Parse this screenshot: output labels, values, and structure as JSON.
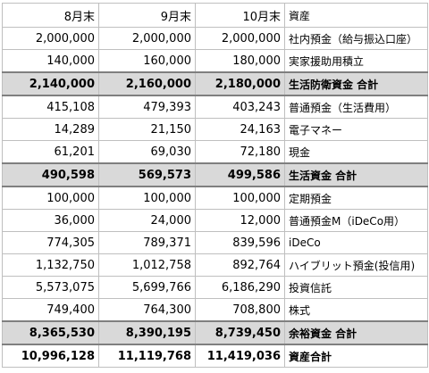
{
  "header": {
    "col1": "8月末",
    "col2": "9月末",
    "col3": "10月末",
    "col4": "資産"
  },
  "rows": [
    {
      "type": "item",
      "aug": "2,000,000",
      "sep": "2,000,000",
      "oct": "2,000,000",
      "label": "社内預金（給与振込口座）"
    },
    {
      "type": "item",
      "aug": "140,000",
      "sep": "160,000",
      "oct": "180,000",
      "label": "実家援助用積立"
    },
    {
      "type": "total",
      "aug": "2,140,000",
      "sep": "2,160,000",
      "oct": "2,180,000",
      "label": "生活防衛資金 合計"
    },
    {
      "type": "item",
      "aug": "415,108",
      "sep": "479,393",
      "oct": "403,243",
      "label": "普通預金（生活費用）"
    },
    {
      "type": "item",
      "aug": "14,289",
      "sep": "21,150",
      "oct": "24,163",
      "label": "電子マネー"
    },
    {
      "type": "item",
      "aug": "61,201",
      "sep": "69,030",
      "oct": "72,180",
      "label": "現金"
    },
    {
      "type": "total",
      "aug": "490,598",
      "sep": "569,573",
      "oct": "499,586",
      "label": "生活資金 合計"
    },
    {
      "type": "item",
      "aug": "100,000",
      "sep": "100,000",
      "oct": "100,000",
      "label": "定期預金"
    },
    {
      "type": "item",
      "aug": "36,000",
      "sep": "24,000",
      "oct": "12,000",
      "label": "普通預金M（iDeCo用）"
    },
    {
      "type": "item",
      "aug": "774,305",
      "sep": "789,371",
      "oct": "839,596",
      "label": "iDeCo"
    },
    {
      "type": "item",
      "aug": "1,132,750",
      "sep": "1,012,758",
      "oct": "892,764",
      "label": "ハイブリット預金(投信用)"
    },
    {
      "type": "item",
      "aug": "5,573,075",
      "sep": "5,699,766",
      "oct": "6,186,290",
      "label": "投資信託"
    },
    {
      "type": "item",
      "aug": "749,400",
      "sep": "764,300",
      "oct": "708,800",
      "label": "株式"
    },
    {
      "type": "total",
      "aug": "8,365,530",
      "sep": "8,390,195",
      "oct": "8,739,450",
      "label": "余裕資金 合計"
    },
    {
      "type": "grand",
      "aug": "10,996,128",
      "sep": "11,119,768",
      "oct": "11,419,036",
      "label": "資産合計"
    }
  ]
}
